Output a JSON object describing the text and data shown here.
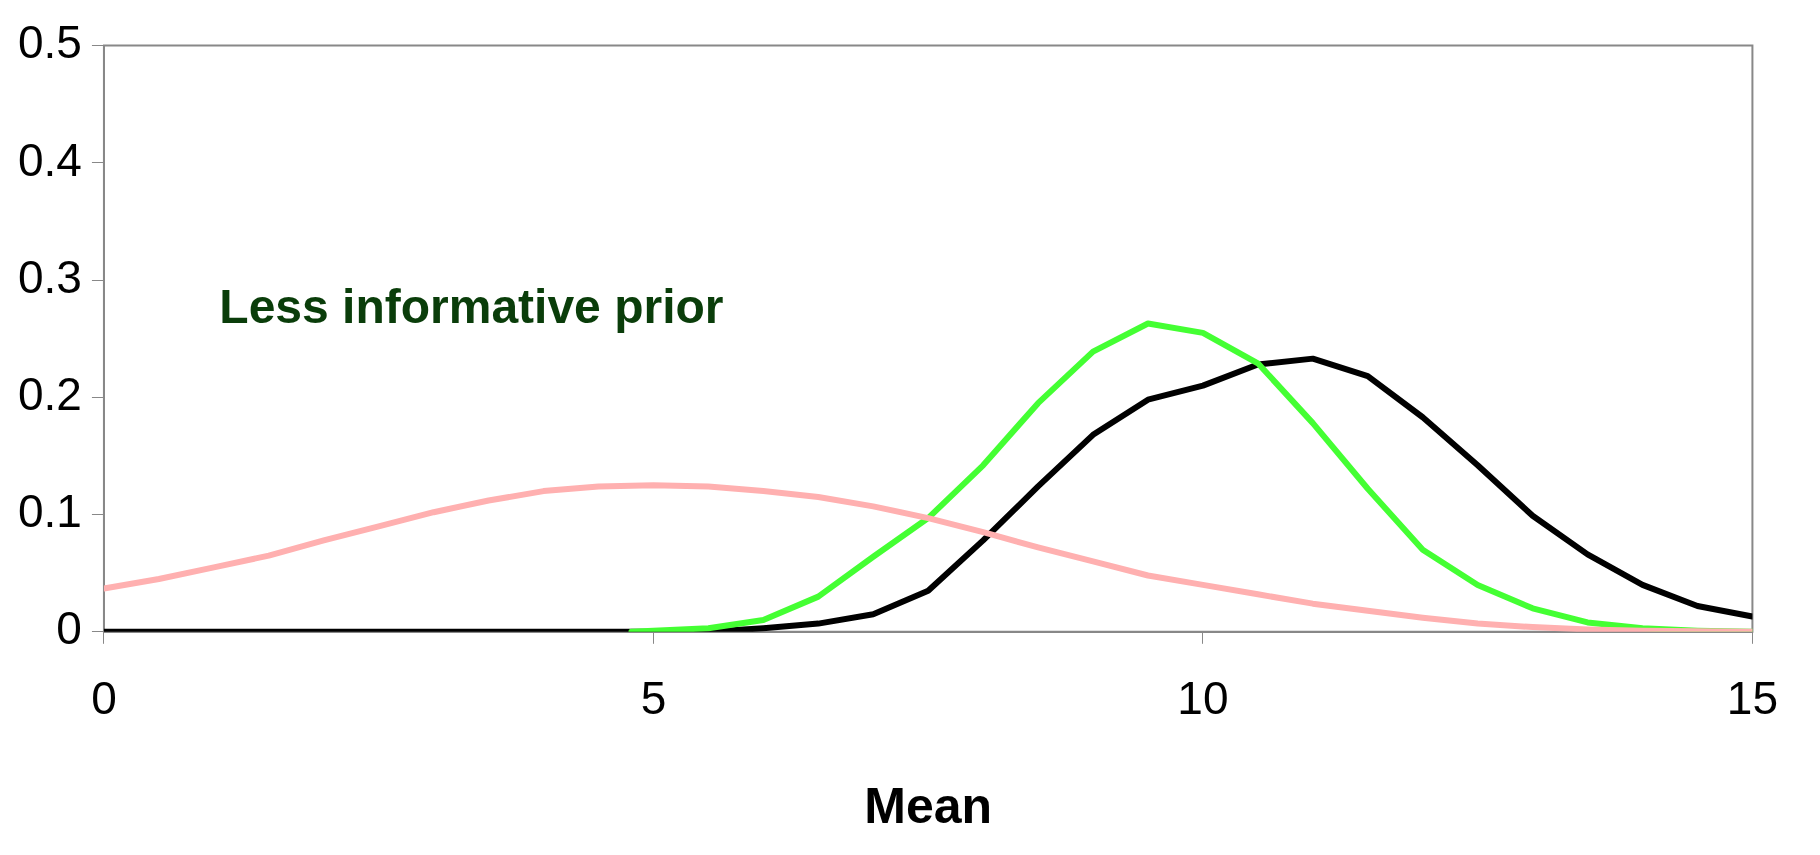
{
  "chart_data": {
    "type": "line",
    "xlabel": "Mean",
    "annotations": [
      "Less informative prior"
    ],
    "xlim": [
      0,
      15
    ],
    "xticks": [
      0,
      5,
      10,
      15
    ],
    "ylim": [
      0,
      0.5
    ],
    "yticks": [
      0,
      0.1,
      0.2,
      0.3,
      0.4,
      0.5
    ],
    "grid": false,
    "legend": false,
    "marker": "none",
    "line_style": "solid",
    "series": [
      {
        "color": "#ffb0b0",
        "x": [
          0,
          0.5,
          1,
          1.5,
          2,
          2.5,
          3,
          3.5,
          4,
          4.5,
          5,
          5.5,
          6,
          6.5,
          7,
          7.5,
          8,
          8.5,
          9,
          9.5,
          10,
          10.5,
          11,
          11.5,
          12,
          12.5,
          13,
          13.5,
          14,
          15
        ],
        "values": [
          0.037,
          0.045,
          0.055,
          0.065,
          0.078,
          0.09,
          0.102,
          0.112,
          0.12,
          0.124,
          0.125,
          0.124,
          0.12,
          0.115,
          0.107,
          0.097,
          0.085,
          0.072,
          0.06,
          0.048,
          0.04,
          0.032,
          0.024,
          0.018,
          0.012,
          0.007,
          0.004,
          0.002,
          0.001,
          0
        ]
      },
      {
        "color": "#44ff33",
        "x": [
          4.8,
          5.5,
          6,
          6.5,
          7,
          7.5,
          8,
          8.5,
          9,
          9.5,
          10,
          10.5,
          11,
          11.5,
          12,
          12.5,
          13,
          13.5,
          14,
          14.5,
          15
        ],
        "values": [
          0,
          0.003,
          0.01,
          0.03,
          0.064,
          0.097,
          0.142,
          0.195,
          0.239,
          0.263,
          0.255,
          0.229,
          0.178,
          0.122,
          0.07,
          0.04,
          0.02,
          0.008,
          0.003,
          0.001,
          0
        ]
      },
      {
        "color": "#000000",
        "x": [
          0,
          5.5,
          6,
          6.5,
          7,
          7.5,
          8,
          8.5,
          9,
          9.5,
          10,
          10.5,
          11,
          11.5,
          12,
          12.5,
          13,
          13.5,
          14,
          14.5,
          15
        ],
        "values": [
          0,
          0,
          0.003,
          0.007,
          0.015,
          0.035,
          0.078,
          0.124,
          0.168,
          0.198,
          0.21,
          0.228,
          0.233,
          0.218,
          0.183,
          0.142,
          0.099,
          0.066,
          0.04,
          0.022,
          0.013
        ]
      }
    ]
  }
}
